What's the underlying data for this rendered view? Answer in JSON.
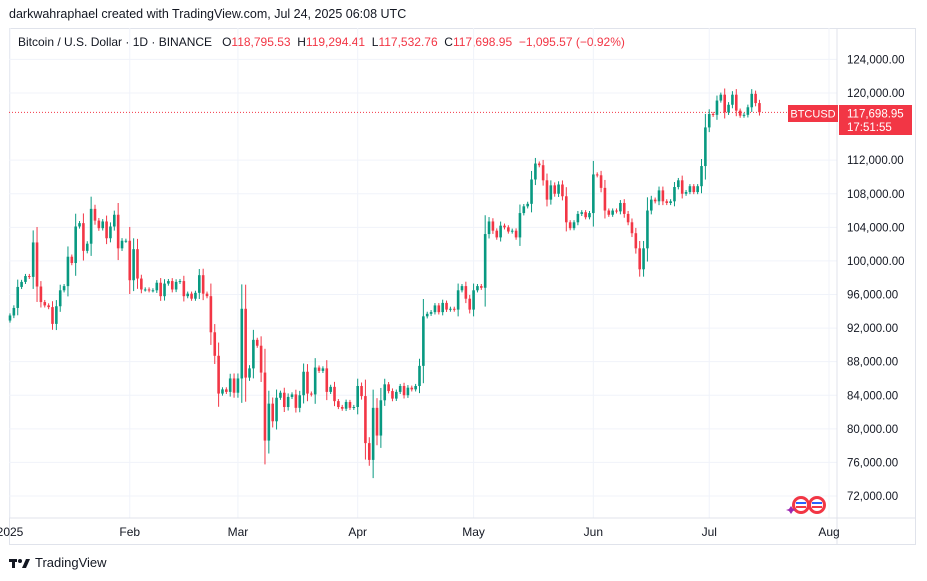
{
  "caption": "darkwahraphael created with TradingView.com, Jul 24, 2025 06:08 UTC",
  "legend": {
    "symbol": "Bitcoin / U.S. Dollar · 1D · BINANCE",
    "o_key": "O",
    "o_val": "118,795.53",
    "h_key": "H",
    "h_val": "119,294.41",
    "l_key": "L",
    "l_val": "117,532.76",
    "c_key": "C",
    "c_val": "117,698.95",
    "change": "−1,095.57 (−0.92%)"
  },
  "price_tag": {
    "ticker": "BTCUSD",
    "price": "117,698.95",
    "countdown": "17:51:55"
  },
  "footer": {
    "brand": "TradingView"
  },
  "colors": {
    "up": "#089981",
    "down": "#f23645",
    "grid": "#f0f3fa",
    "text": "#131722"
  },
  "chart_data": {
    "type": "candlestick",
    "title": "Bitcoin / U.S. Dollar · 1D · BINANCE",
    "y_ticks": [
      {
        "value": 72000,
        "label": "72,000.00"
      },
      {
        "value": 76000,
        "label": "76,000.00"
      },
      {
        "value": 80000,
        "label": "80,000.00"
      },
      {
        "value": 84000,
        "label": "84,000.00"
      },
      {
        "value": 88000,
        "label": "88,000.00"
      },
      {
        "value": 92000,
        "label": "92,000.00"
      },
      {
        "value": 96000,
        "label": "96,000.00"
      },
      {
        "value": 100000,
        "label": "100,000.00"
      },
      {
        "value": 104000,
        "label": "104,000.00"
      },
      {
        "value": 108000,
        "label": "108,000.00"
      },
      {
        "value": 112000,
        "label": "112,000.00"
      },
      {
        "value": 120000,
        "label": "120,000.00"
      },
      {
        "value": 124000,
        "label": "124,000.00"
      }
    ],
    "x_ticks": [
      {
        "day": 1,
        "label": "2025"
      },
      {
        "day": 32,
        "label": "Feb"
      },
      {
        "day": 60,
        "label": "Mar"
      },
      {
        "day": 91,
        "label": "Apr"
      },
      {
        "day": 121,
        "label": "May"
      },
      {
        "day": 152,
        "label": "Jun"
      },
      {
        "day": 182,
        "label": "Jul"
      },
      {
        "day": 213,
        "label": "Aug"
      }
    ],
    "ylim": [
      70000,
      126000
    ],
    "last_close": 117698.95,
    "closes": [
      93500,
      94400,
      96900,
      97500,
      98200,
      98100,
      102200,
      96950,
      95100,
      94700,
      94500,
      92500,
      94600,
      96500,
      97000,
      100500,
      99750,
      104100,
      104500,
      101200,
      102050,
      106200,
      104800,
      103900,
      104700,
      102700,
      104100,
      105500,
      101500,
      102400,
      102400,
      97700,
      101400,
      97900,
      96600,
      96600,
      96500,
      96500,
      97400,
      95800,
      97300,
      97600,
      96600,
      97500,
      97600,
      95800,
      96100,
      95500,
      96200,
      98300,
      96100,
      95800,
      91500,
      88700,
      84200,
      84700,
      84400,
      86000,
      84300,
      86000,
      94300,
      86100,
      87200,
      90600,
      89900,
      86700,
      78600,
      83000,
      80900,
      83700,
      84300,
      82600,
      83800,
      84100,
      82500,
      84000,
      86800,
      84200,
      84100,
      87300,
      86900,
      87200,
      84400,
      85000,
      83300,
      82600,
      82400,
      83200,
      82500,
      82600,
      85100,
      83900,
      78300,
      76300,
      82500,
      79200,
      83400,
      85300,
      84500,
      83600,
      84400,
      85100,
      84000,
      84900,
      84700,
      85100,
      87500,
      93400,
      93700,
      93900,
      94700,
      93900,
      95000,
      94200,
      94300,
      94200,
      96500,
      97000,
      95500,
      94200,
      96500,
      97000,
      96800,
      103200,
      104700,
      103600,
      102800,
      104200,
      104000,
      103500,
      103600,
      102800,
      105700,
      106500,
      106800,
      109700,
      111600,
      111400,
      109600,
      107300,
      109000,
      108000,
      109100,
      107700,
      104600,
      103900,
      104600,
      105600,
      105800,
      105200,
      105700,
      110300,
      110200,
      108700,
      106000,
      105500,
      106000,
      105900,
      106900,
      105600,
      104600,
      103300,
      101500,
      99000,
      101500,
      106000,
      107300,
      107100,
      108400,
      107100,
      106900,
      107100,
      108800,
      109600,
      108000,
      108200,
      108900,
      108200,
      108900,
      111300,
      115900,
      117500,
      117400,
      119100,
      119800,
      117700,
      118600,
      119800,
      117900,
      117300,
      117400,
      118300,
      119900,
      118800,
      117700
    ],
    "annotations": []
  }
}
